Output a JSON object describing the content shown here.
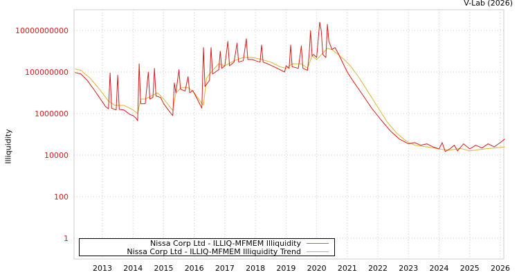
{
  "credit": "V-Lab (2026)",
  "chart_data": {
    "type": "line",
    "title": "",
    "xlabel": "",
    "ylabel": "Illiquidity",
    "yscale": "log",
    "ylim": [
      0.2,
      150000000000.0
    ],
    "xlim": [
      2012.1,
      2026.15
    ],
    "y_ticks": [
      {
        "value": 1,
        "label": "1"
      },
      {
        "value": 100,
        "label": "100"
      },
      {
        "value": 10000,
        "label": "10000"
      },
      {
        "value": 1000000,
        "label": "1000000"
      },
      {
        "value": 100000000,
        "label": "100000000"
      },
      {
        "value": 10000000000,
        "label": "10000000000"
      }
    ],
    "x_ticks": [
      "2013",
      "2014",
      "2015",
      "2016",
      "2017",
      "2018",
      "2019",
      "2020",
      "2021",
      "2022",
      "2023",
      "2024",
      "2025",
      "2026"
    ],
    "grid": true,
    "legend_position": "bottom-left inside",
    "series": [
      {
        "name": "Nissa Corp Ltd - ILLIQ-MFMEM Illiquidity",
        "color": "#d7191c",
        "points": [
          [
            2012.1,
            95000000.0
          ],
          [
            2012.3,
            80000000.0
          ],
          [
            2012.5,
            40000000.0
          ],
          [
            2012.7,
            16000000.0
          ],
          [
            2012.9,
            6000000.0
          ],
          [
            2013.1,
            2200000.0
          ],
          [
            2013.2,
            1700000.0
          ],
          [
            2013.25,
            90000000.0
          ],
          [
            2013.3,
            1800000.0
          ],
          [
            2013.45,
            1500000.0
          ],
          [
            2013.5,
            70000000.0
          ],
          [
            2013.55,
            1600000.0
          ],
          [
            2013.7,
            1500000.0
          ],
          [
            2013.9,
            900000.0
          ],
          [
            2014.0,
            800000.0
          ],
          [
            2014.1,
            600000.0
          ],
          [
            2014.15,
            450000.0
          ],
          [
            2014.2,
            250000000.0
          ],
          [
            2014.25,
            3000000.0
          ],
          [
            2014.4,
            3000000.0
          ],
          [
            2014.5,
            100000000.0
          ],
          [
            2014.55,
            5000000.0
          ],
          [
            2014.65,
            6000000.0
          ],
          [
            2014.7,
            150000000.0
          ],
          [
            2014.75,
            7000000.0
          ],
          [
            2014.9,
            6000000.0
          ],
          [
            2015.0,
            3000000.0
          ],
          [
            2015.2,
            1200000.0
          ],
          [
            2015.3,
            800000.0
          ],
          [
            2015.35,
            30000000.0
          ],
          [
            2015.4,
            10000000.0
          ],
          [
            2015.5,
            130000000.0
          ],
          [
            2015.55,
            15000000.0
          ],
          [
            2015.7,
            12000000.0
          ],
          [
            2015.8,
            60000000.0
          ],
          [
            2015.85,
            10000000.0
          ],
          [
            2015.95,
            13000000.0
          ],
          [
            2016.1,
            5000000.0
          ],
          [
            2016.25,
            1800000.0
          ],
          [
            2016.3,
            1500000000.0
          ],
          [
            2016.35,
            20000000.0
          ],
          [
            2016.5,
            40000000.0
          ],
          [
            2016.55,
            1500000000.0
          ],
          [
            2016.6,
            80000000.0
          ],
          [
            2016.8,
            130000000.0
          ],
          [
            2016.85,
            1000000000.0
          ],
          [
            2016.9,
            150000000.0
          ],
          [
            2017.0,
            200000000.0
          ],
          [
            2017.1,
            3000000000.0
          ],
          [
            2017.15,
            200000000.0
          ],
          [
            2017.3,
            300000000.0
          ],
          [
            2017.4,
            2500000000.0
          ],
          [
            2017.45,
            300000000.0
          ],
          [
            2017.6,
            350000000.0
          ],
          [
            2017.7,
            4000000000.0
          ],
          [
            2017.75,
            400000000.0
          ],
          [
            2017.9,
            400000000.0
          ],
          [
            2018.0,
            350000000.0
          ],
          [
            2018.15,
            300000000.0
          ],
          [
            2018.2,
            2000000000.0
          ],
          [
            2018.25,
            300000000.0
          ],
          [
            2018.4,
            250000000.0
          ],
          [
            2018.6,
            180000000.0
          ],
          [
            2018.8,
            130000000.0
          ],
          [
            2018.95,
            100000000.0
          ],
          [
            2019.0,
            200000000.0
          ],
          [
            2019.1,
            150000000.0
          ],
          [
            2019.15,
            2000000000.0
          ],
          [
            2019.2,
            180000000.0
          ],
          [
            2019.4,
            150000000.0
          ],
          [
            2019.5,
            1800000000.0
          ],
          [
            2019.55,
            150000000.0
          ],
          [
            2019.7,
            120000000.0
          ],
          [
            2019.75,
            600000000.0
          ],
          [
            2019.8,
            10000000000.0
          ],
          [
            2019.85,
            600000000.0
          ],
          [
            2019.9,
            700000000.0
          ],
          [
            2020.0,
            500000000.0
          ],
          [
            2020.1,
            25000000000.0
          ],
          [
            2020.15,
            10000000000.0
          ],
          [
            2020.2,
            700000000.0
          ],
          [
            2020.3,
            500000000.0
          ],
          [
            2020.35,
            20000000000.0
          ],
          [
            2020.4,
            3000000000.0
          ],
          [
            2020.5,
            1200000000.0
          ],
          [
            2020.6,
            1500000000.0
          ],
          [
            2020.7,
            800000000.0
          ],
          [
            2020.8,
            400000000.0
          ],
          [
            2020.9,
            200000000.0
          ],
          [
            2021.0,
            100000000.0
          ],
          [
            2021.2,
            35000000.0
          ],
          [
            2021.5,
            8000000.0
          ],
          [
            2021.8,
            1800000.0
          ],
          [
            2022.1,
            500000.0
          ],
          [
            2022.4,
            150000.0
          ],
          [
            2022.7,
            60000.0
          ],
          [
            2023.0,
            35000.0
          ],
          [
            2023.2,
            40000.0
          ],
          [
            2023.4,
            30000.0
          ],
          [
            2023.6,
            35000.0
          ],
          [
            2023.8,
            25000.0
          ],
          [
            2024.0,
            20000.0
          ],
          [
            2024.1,
            40000.0
          ],
          [
            2024.2,
            15000.0
          ],
          [
            2024.35,
            20000.0
          ],
          [
            2024.5,
            30000.0
          ],
          [
            2024.6,
            16000.0
          ],
          [
            2024.8,
            35000.0
          ],
          [
            2025.0,
            20000.0
          ],
          [
            2025.2,
            30000.0
          ],
          [
            2025.4,
            22000.0
          ],
          [
            2025.6,
            35000.0
          ],
          [
            2025.8,
            25000.0
          ],
          [
            2026.0,
            40000.0
          ],
          [
            2026.15,
            60000.0
          ]
        ]
      },
      {
        "name": "Nissa Corp Ltd - ILLIQ-MFMEM Illiquidity Trend",
        "color": "#dfb32e",
        "points": [
          [
            2012.1,
            140000000.0
          ],
          [
            2012.3,
            120000000.0
          ],
          [
            2012.6,
            50000000.0
          ],
          [
            2012.9,
            15000000.0
          ],
          [
            2013.2,
            4000000.0
          ],
          [
            2013.4,
            2500000.0
          ],
          [
            2013.7,
            2500000.0
          ],
          [
            2013.9,
            1800000.0
          ],
          [
            2014.0,
            1500000.0
          ],
          [
            2014.15,
            1000000.0
          ],
          [
            2014.25,
            5000000.0
          ],
          [
            2014.4,
            5000000.0
          ],
          [
            2014.6,
            7000000.0
          ],
          [
            2014.8,
            10000000.0
          ],
          [
            2015.0,
            5000000.0
          ],
          [
            2015.3,
            1400000.0
          ],
          [
            2015.4,
            10000000.0
          ],
          [
            2015.6,
            18000000.0
          ],
          [
            2015.8,
            18000000.0
          ],
          [
            2016.0,
            10000000.0
          ],
          [
            2016.3,
            2500000.0
          ],
          [
            2016.4,
            50000000.0
          ],
          [
            2016.6,
            120000000.0
          ],
          [
            2016.8,
            250000000.0
          ],
          [
            2017.0,
            200000000.0
          ],
          [
            2017.3,
            350000000.0
          ],
          [
            2017.6,
            500000000.0
          ],
          [
            2017.9,
            500000000.0
          ],
          [
            2018.2,
            400000000.0
          ],
          [
            2018.5,
            300000000.0
          ],
          [
            2018.8,
            180000000.0
          ],
          [
            2019.0,
            150000000.0
          ],
          [
            2019.2,
            250000000.0
          ],
          [
            2019.5,
            250000000.0
          ],
          [
            2019.7,
            150000000.0
          ],
          [
            2019.85,
            600000000.0
          ],
          [
            2020.0,
            400000000.0
          ],
          [
            2020.2,
            800000000.0
          ],
          [
            2020.35,
            1400000000.0
          ],
          [
            2020.5,
            1200000000.0
          ],
          [
            2020.7,
            700000000.0
          ],
          [
            2020.9,
            400000000.0
          ],
          [
            2021.1,
            200000000.0
          ],
          [
            2021.4,
            50000000.0
          ],
          [
            2021.7,
            10000000.0
          ],
          [
            2022.0,
            2000000.0
          ],
          [
            2022.3,
            400000.0
          ],
          [
            2022.6,
            120000.0
          ],
          [
            2022.9,
            50000.0
          ],
          [
            2023.2,
            30000.0
          ],
          [
            2023.6,
            25000.0
          ],
          [
            2024.0,
            20000.0
          ],
          [
            2024.3,
            17000.0
          ],
          [
            2024.7,
            21000.0
          ],
          [
            2025.0,
            16000.0
          ],
          [
            2025.5,
            20000.0
          ],
          [
            2026.15,
            25000.0
          ]
        ]
      }
    ]
  }
}
